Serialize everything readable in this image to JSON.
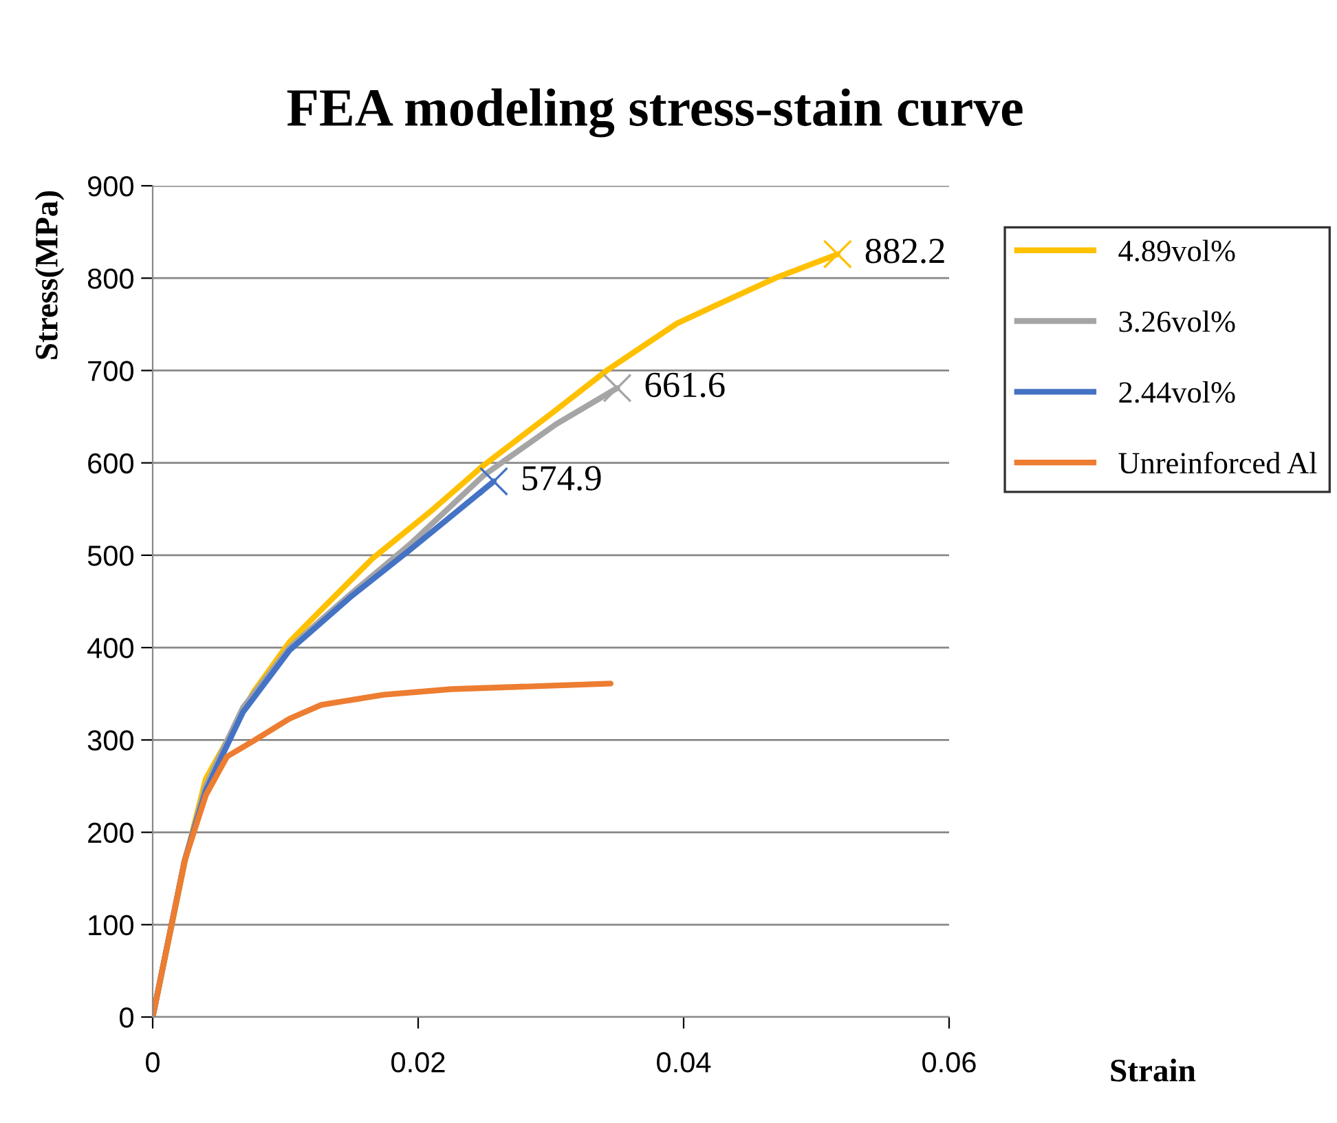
{
  "chart_data": {
    "type": "line",
    "title": "FEA modeling stress-stain curve",
    "xlabel": "Strain",
    "ylabel": "Stress(MPa)",
    "xlim": [
      0,
      0.06
    ],
    "xticks": [
      0,
      0.02,
      0.04,
      0.06
    ],
    "ylim": [
      0,
      900
    ],
    "yticks": [
      0,
      100,
      200,
      300,
      400,
      500,
      600,
      700,
      800,
      900
    ],
    "grid": "y",
    "legend": "right",
    "line_style": "solid",
    "series": [
      {
        "name": "4.89vol%",
        "color": "#ffc000",
        "x": [
          0,
          0.00244,
          0.004,
          0.0056,
          0.0076,
          0.0103,
          0.0127,
          0.0166,
          0.0209,
          0.0249,
          0.03,
          0.0343,
          0.0395,
          0.0422,
          0.0469,
          0.0516
        ],
        "values": [
          0,
          169,
          258,
          299,
          352,
          406,
          441,
          497,
          547,
          597,
          653,
          701,
          751,
          769,
          800,
          826
        ]
      },
      {
        "name": "3.26vol%",
        "color": "#a5a5a5",
        "x": [
          0,
          0.0024,
          0.004,
          0.0052,
          0.0068,
          0.0103,
          0.015,
          0.0194,
          0.0249,
          0.0304,
          0.035
        ],
        "values": [
          0,
          169,
          250,
          287,
          335,
          400,
          459,
          512,
          586,
          642,
          681
        ]
      },
      {
        "name": "2.44vol%",
        "color": "#4472c4",
        "x": [
          0,
          0.0024,
          0.004,
          0.0052,
          0.0068,
          0.0103,
          0.015,
          0.0194,
          0.0257
        ],
        "values": [
          0,
          169,
          245,
          282,
          330,
          397,
          456,
          506,
          580
        ]
      },
      {
        "name": "Unreinforced Al",
        "color": "#ed7d31",
        "x": [
          0,
          0.0024,
          0.004,
          0.0056,
          0.0076,
          0.0103,
          0.0127,
          0.0174,
          0.0225,
          0.0345
        ],
        "values": [
          0,
          169,
          240,
          282,
          299,
          323,
          338,
          349,
          355,
          361
        ]
      }
    ],
    "annotations": [
      {
        "text": "882.2",
        "x": 0.0516,
        "y": 826
      },
      {
        "text": "661.6",
        "x": 0.035,
        "y": 681
      },
      {
        "text": "574.9",
        "x": 0.0257,
        "y": 580
      }
    ]
  }
}
